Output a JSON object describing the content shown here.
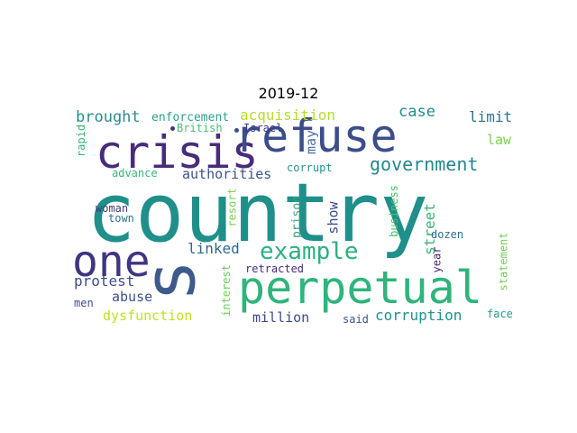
{
  "title": "2019-12",
  "words": [
    {
      "text": "country",
      "color": "#1f8f8a"
    },
    {
      "text": "crisis",
      "color": "#472c7a"
    },
    {
      "text": "refuse",
      "color": "#3b4d8a"
    },
    {
      "text": "perpetual",
      "color": "#2fb47c"
    },
    {
      "text": "one",
      "color": "#3e3681"
    },
    {
      "text": "s",
      "color": "#3e5a8c"
    },
    {
      "text": "example",
      "color": "#2ab07f"
    },
    {
      "text": "government",
      "color": "#23878d"
    },
    {
      "text": "brought",
      "color": "#2b8c8c"
    },
    {
      "text": "acquisition",
      "color": "#b5de2b"
    },
    {
      "text": "case",
      "color": "#218e8d"
    },
    {
      "text": "limit",
      "color": "#2c728e"
    },
    {
      "text": "law",
      "color": "#7ad151"
    },
    {
      "text": "enforcement",
      "color": "#2e9f87"
    },
    {
      "text": "British",
      "color": "#45bf6f"
    },
    {
      "text": "Israel",
      "color": "#3a3a8c"
    },
    {
      "text": "rapid",
      "color": "#35b779"
    },
    {
      "text": "may",
      "color": "#4c6fa0"
    },
    {
      "text": "authorities",
      "color": "#3b528b"
    },
    {
      "text": "advance",
      "color": "#35b779"
    },
    {
      "text": "corrupt",
      "color": "#1f968b"
    },
    {
      "text": "resort",
      "color": "#7ad151"
    },
    {
      "text": "show",
      "color": "#3a4a8a"
    },
    {
      "text": "woman",
      "color": "#443a83"
    },
    {
      "text": "town",
      "color": "#2c728e"
    },
    {
      "text": "prison",
      "color": "#3aa17f"
    },
    {
      "text": "business",
      "color": "#4ac16d"
    },
    {
      "text": "street",
      "color": "#3bb273"
    },
    {
      "text": "dozen",
      "color": "#2c6e8e"
    },
    {
      "text": "statement",
      "color": "#73cf54"
    },
    {
      "text": "linked",
      "color": "#31688e"
    },
    {
      "text": "protest",
      "color": "#3e4c8a"
    },
    {
      "text": "year",
      "color": "#482878"
    },
    {
      "text": "retracted",
      "color": "#472d7b"
    },
    {
      "text": "interest",
      "color": "#6ccd5a"
    },
    {
      "text": "abuse",
      "color": "#3b528b"
    },
    {
      "text": "men",
      "color": "#3e4c8a"
    },
    {
      "text": "dysfunction",
      "color": "#c2df23"
    },
    {
      "text": "million",
      "color": "#3e4989"
    },
    {
      "text": "corruption",
      "color": "#21918c"
    },
    {
      "text": "said",
      "color": "#3b528b"
    },
    {
      "text": "face",
      "color": "#2c9b88"
    }
  ]
}
